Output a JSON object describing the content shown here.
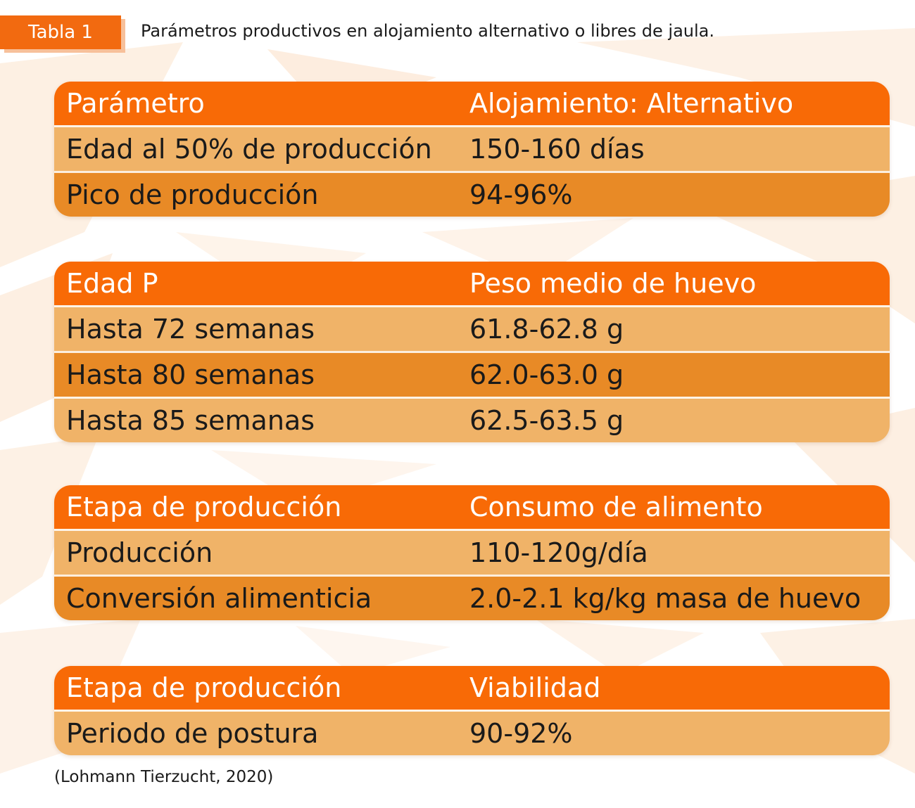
{
  "caption": {
    "tag": "Tabla 1",
    "title": "Parámetros productivos en alojamiento alternativo o libres de jaula."
  },
  "tables": [
    {
      "header": [
        "Parámetro",
        "Alojamiento: Alternativo"
      ],
      "rows": [
        [
          "Edad al 50% de producción",
          "150-160 días"
        ],
        [
          "Pico de producción",
          "94-96%"
        ]
      ]
    },
    {
      "header": [
        "Edad P",
        "Peso medio de huevo"
      ],
      "rows": [
        [
          "Hasta 72 semanas",
          "61.8-62.8 g"
        ],
        [
          "Hasta 80 semanas",
          "62.0-63.0 g"
        ],
        [
          "Hasta 85 semanas",
          "62.5-63.5 g"
        ]
      ]
    },
    {
      "header": [
        "Etapa de producción",
        "Consumo de alimento"
      ],
      "rows": [
        [
          "Producción",
          "110-120g/día"
        ],
        [
          "Conversión alimenticia",
          "2.0-2.1 kg/kg masa de huevo"
        ]
      ]
    },
    {
      "header": [
        "Etapa de producción",
        "Viabilidad"
      ],
      "rows": [
        [
          "Periodo de postura",
          "90-92%"
        ]
      ]
    }
  ],
  "source": "(Lohmann Tierzucht, 2020)",
  "colors": {
    "header": "#f86a06",
    "row_light": "#f0b368",
    "row_dark": "#e88a26",
    "tag": "#f26a10"
  }
}
